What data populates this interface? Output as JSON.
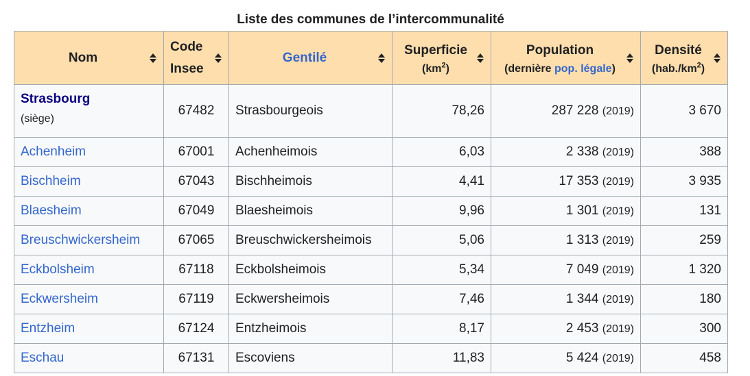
{
  "caption": "Liste des communes de l’intercommunalité",
  "headers": {
    "nom": "Nom",
    "code_line1": "Code",
    "code_line2": "Insee",
    "gentile": "Gentilé",
    "superficie": "Superficie",
    "superficie_unit_pre": "(km",
    "superficie_unit_sup": "2",
    "superficie_unit_post": ")",
    "population": "Population",
    "population_sub_pre": "(dernière ",
    "population_sub_link": "pop. légale",
    "population_sub_post": ")",
    "densite": "Densité",
    "densite_unit_pre": "(hab./km",
    "densite_unit_sup": "2",
    "densite_unit_post": ")"
  },
  "rows": [
    {
      "nom": "Strasbourg",
      "note": "(siège)",
      "code": "67482",
      "gentile": "Strasbourgeois",
      "superficie": "78,26",
      "population": "287 228",
      "year": "(2019)",
      "densite": "3 670"
    },
    {
      "nom": "Achenheim",
      "code": "67001",
      "gentile": "Achenheimois",
      "superficie": "6,03",
      "population": "2 338",
      "year": "(2019)",
      "densite": "388"
    },
    {
      "nom": "Bischheim",
      "code": "67043",
      "gentile": "Bischheimois",
      "superficie": "4,41",
      "population": "17 353",
      "year": "(2019)",
      "densite": "3 935"
    },
    {
      "nom": "Blaesheim",
      "code": "67049",
      "gentile": "Blaesheimois",
      "superficie": "9,96",
      "population": "1 301",
      "year": "(2019)",
      "densite": "131"
    },
    {
      "nom": "Breuschwickersheim",
      "code": "67065",
      "gentile": "Breuschwickersheimois",
      "superficie": "5,06",
      "population": "1 313",
      "year": "(2019)",
      "densite": "259"
    },
    {
      "nom": "Eckbolsheim",
      "code": "67118",
      "gentile": "Eckbolsheimois",
      "superficie": "5,34",
      "population": "7 049",
      "year": "(2019)",
      "densite": "1 320"
    },
    {
      "nom": "Eckwersheim",
      "code": "67119",
      "gentile": "Eckwersheimois",
      "superficie": "7,46",
      "population": "1 344",
      "year": "(2019)",
      "densite": "180"
    },
    {
      "nom": "Entzheim",
      "code": "67124",
      "gentile": "Entzheimois",
      "superficie": "8,17",
      "population": "2 453",
      "year": "(2019)",
      "densite": "300"
    },
    {
      "nom": "Eschau",
      "code": "67131",
      "gentile": "Escoviens",
      "superficie": "11,83",
      "population": "5 424",
      "year": "(2019)",
      "densite": "458"
    }
  ],
  "colors": {
    "header_bg": "#ffdead",
    "link": "#3366cc",
    "link_visited_bold": "#0b0080",
    "border": "#a2a9b1",
    "cell_bg": "#f8f9fa"
  },
  "icons": {
    "sort": "sort-icon"
  }
}
